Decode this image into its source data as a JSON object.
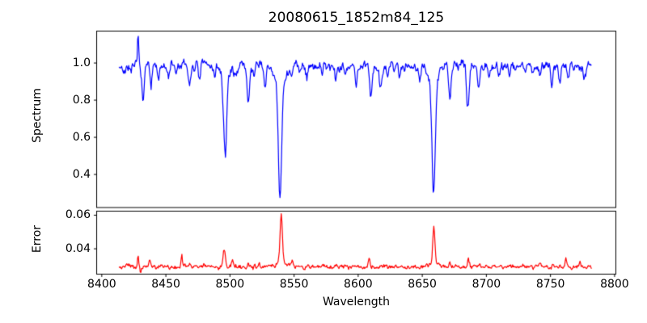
{
  "figure": {
    "background": "#ffffff",
    "spine_color": "#000000",
    "text_color": "#000000"
  },
  "chart_data": [
    {
      "type": "line",
      "panel": "spectrum",
      "title": "20080615_1852m84_125",
      "ylabel": "Spectrum",
      "line_color": "#0000ff",
      "grid": false,
      "legend": null,
      "xlim": [
        8396,
        8801
      ],
      "ylim": [
        0.222,
        1.172
      ],
      "ytick_values": [
        0.4,
        0.6,
        0.8,
        1.0
      ],
      "ytick_labels": [
        "0.4",
        "0.6",
        "0.8",
        "1.0"
      ],
      "data_wavelength_range": [
        8413.5,
        8782.0
      ],
      "sample_step": 0.5,
      "continuum_level": 0.985,
      "noise_amplitude": 0.013,
      "feature_format": [
        "center_wavelength",
        "depth_or_height",
        "sigma"
      ],
      "absorption_lines": [
        [
          8417.5,
          0.05,
          0.7
        ],
        [
          8422.5,
          0.06,
          0.8
        ],
        [
          8432.3,
          0.2,
          0.8
        ],
        [
          8438.5,
          0.12,
          0.8
        ],
        [
          8444.0,
          0.09,
          0.7
        ],
        [
          8452.0,
          0.06,
          0.7
        ],
        [
          8458.0,
          0.05,
          0.6
        ],
        [
          8468.5,
          0.11,
          0.8
        ],
        [
          8476.0,
          0.07,
          0.7
        ],
        [
          8488.0,
          0.05,
          0.6
        ],
        [
          8496.2,
          0.42,
          1.15
        ],
        [
          8496.2,
          0.07,
          3.2
        ],
        [
          8504.0,
          0.06,
          0.8
        ],
        [
          8514.3,
          0.19,
          1.0
        ],
        [
          8519.0,
          0.07,
          0.7
        ],
        [
          8527.5,
          0.11,
          0.8
        ],
        [
          8539.0,
          0.63,
          1.25
        ],
        [
          8539.0,
          0.1,
          4.0
        ],
        [
          8548.0,
          0.06,
          0.7
        ],
        [
          8560.0,
          0.05,
          0.6
        ],
        [
          8572.0,
          0.05,
          0.6
        ],
        [
          8582.5,
          0.08,
          0.7
        ],
        [
          8590.0,
          0.05,
          0.6
        ],
        [
          8598.5,
          0.12,
          0.8
        ],
        [
          8610.0,
          0.15,
          1.0
        ],
        [
          8617.5,
          0.12,
          0.8
        ],
        [
          8623.0,
          0.08,
          0.7
        ],
        [
          8632.0,
          0.05,
          0.6
        ],
        [
          8648.0,
          0.06,
          0.7
        ],
        [
          8658.8,
          0.61,
          1.25
        ],
        [
          8658.8,
          0.09,
          3.8
        ],
        [
          8671.5,
          0.16,
          0.9
        ],
        [
          8685.5,
          0.22,
          1.0
        ],
        [
          8694.0,
          0.1,
          0.8
        ],
        [
          8702.0,
          0.06,
          0.7
        ],
        [
          8710.0,
          0.06,
          0.7
        ],
        [
          8718.0,
          0.05,
          0.6
        ],
        [
          8736.0,
          0.05,
          0.7
        ],
        [
          8742.0,
          0.06,
          0.7
        ],
        [
          8751.0,
          0.12,
          0.8
        ],
        [
          8757.5,
          0.1,
          0.8
        ],
        [
          8764.0,
          0.07,
          0.7
        ],
        [
          8776.0,
          0.06,
          0.7
        ]
      ],
      "emission_spikes": [
        [
          8428.3,
          0.14,
          0.5
        ]
      ]
    },
    {
      "type": "line",
      "panel": "error",
      "ylabel": "Error",
      "xlabel": "Wavelength",
      "line_color": "#ff0000",
      "grid": false,
      "legend": null,
      "xlim": [
        8396,
        8801
      ],
      "ylim": [
        0.0249,
        0.0624
      ],
      "ytick_values": [
        0.04,
        0.06
      ],
      "ytick_labels": [
        "0.04",
        "0.06"
      ],
      "xtick_values": [
        8400,
        8450,
        8500,
        8550,
        8600,
        8650,
        8700,
        8750,
        8800
      ],
      "xtick_labels": [
        "8400",
        "8450",
        "8500",
        "8550",
        "8600",
        "8650",
        "8700",
        "8750",
        "8800"
      ],
      "data_wavelength_range": [
        8413.5,
        8782.0
      ],
      "sample_step": 0.5,
      "baseline_level": 0.0293,
      "noise_amplitude": 0.0006,
      "feature_format": [
        "center_wavelength",
        "peak_height",
        "sigma"
      ],
      "error_peaks": [
        [
          8422.0,
          0.0015,
          0.6
        ],
        [
          8428.3,
          0.0072,
          0.45
        ],
        [
          8430.2,
          -0.0032,
          0.4
        ],
        [
          8437.5,
          0.003,
          0.8
        ],
        [
          8447.0,
          0.0018,
          0.7
        ],
        [
          8462.3,
          0.0066,
          0.5
        ],
        [
          8469.0,
          0.0016,
          0.6
        ],
        [
          8480.0,
          0.0018,
          0.7
        ],
        [
          8495.5,
          0.0102,
          0.9
        ],
        [
          8502.0,
          0.004,
          0.7
        ],
        [
          8514.5,
          0.0022,
          0.8
        ],
        [
          8523.0,
          0.0015,
          0.6
        ],
        [
          8540.0,
          0.0285,
          0.9
        ],
        [
          8540.0,
          0.0038,
          3.2
        ],
        [
          8548.5,
          0.0028,
          0.8
        ],
        [
          8564.0,
          0.0013,
          0.6
        ],
        [
          8572.0,
          0.0013,
          0.6
        ],
        [
          8583.0,
          0.0012,
          0.6
        ],
        [
          8608.5,
          0.005,
          0.7
        ],
        [
          8618.0,
          0.0012,
          0.6
        ],
        [
          8659.0,
          0.0205,
          0.85
        ],
        [
          8659.0,
          0.0026,
          3.0
        ],
        [
          8671.5,
          0.0022,
          0.7
        ],
        [
          8686.0,
          0.0036,
          0.8
        ],
        [
          8695.0,
          0.0015,
          0.6
        ],
        [
          8742.0,
          0.002,
          0.7
        ],
        [
          8752.0,
          0.0015,
          0.6
        ],
        [
          8762.0,
          0.0048,
          0.7
        ],
        [
          8773.0,
          0.004,
          0.7
        ],
        [
          8783.0,
          -0.0022,
          0.9
        ]
      ]
    }
  ]
}
